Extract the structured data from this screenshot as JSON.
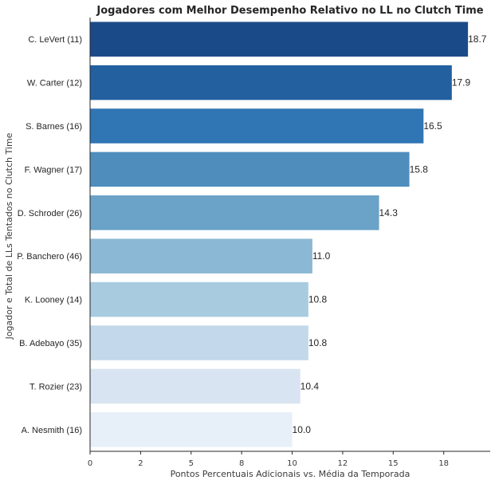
{
  "chart_data": {
    "type": "bar",
    "orientation": "horizontal",
    "title": "Jogadores com Melhor Desempenho Relativo no LL no Clutch Time",
    "xlabel": "Pontos Percentuais Adicionais vs. Média da Temporada",
    "ylabel": "Jogador e Total de LLs Tentados no Clutch Time",
    "categories": [
      "C. LeVert (11)",
      "W. Carter (12)",
      "S. Barnes (16)",
      "F. Wagner (17)",
      "D. Schroder (26)",
      "P. Banchero (46)",
      "K. Looney (14)",
      "B. Adebayo (35)",
      "T. Rozier (23)",
      "A. Nesmith (16)"
    ],
    "values": [
      18.7,
      17.9,
      16.5,
      15.8,
      14.3,
      11.0,
      10.8,
      10.8,
      10.4,
      10.0
    ],
    "data_labels": [
      "18.7",
      "17.9",
      "16.5",
      "15.8",
      "14.3",
      "11.0",
      "10.8",
      "10.8",
      "10.4",
      "10.0"
    ],
    "xticks": [
      0,
      2.5,
      5,
      7.5,
      10,
      12.5,
      15,
      17.5
    ],
    "xtick_labels": [
      "0",
      "2",
      "5",
      "8",
      "10",
      "12",
      "15",
      "18"
    ],
    "xlim": [
      0,
      19.8
    ],
    "colors": [
      "#1b4a89",
      "#22609f",
      "#3075b4",
      "#4f8dbd",
      "#6aa2c8",
      "#8bb8d4",
      "#a8cbdf",
      "#c3d8ea",
      "#d8e4f1",
      "#e7eff8"
    ],
    "grid": false,
    "legend": "none"
  }
}
